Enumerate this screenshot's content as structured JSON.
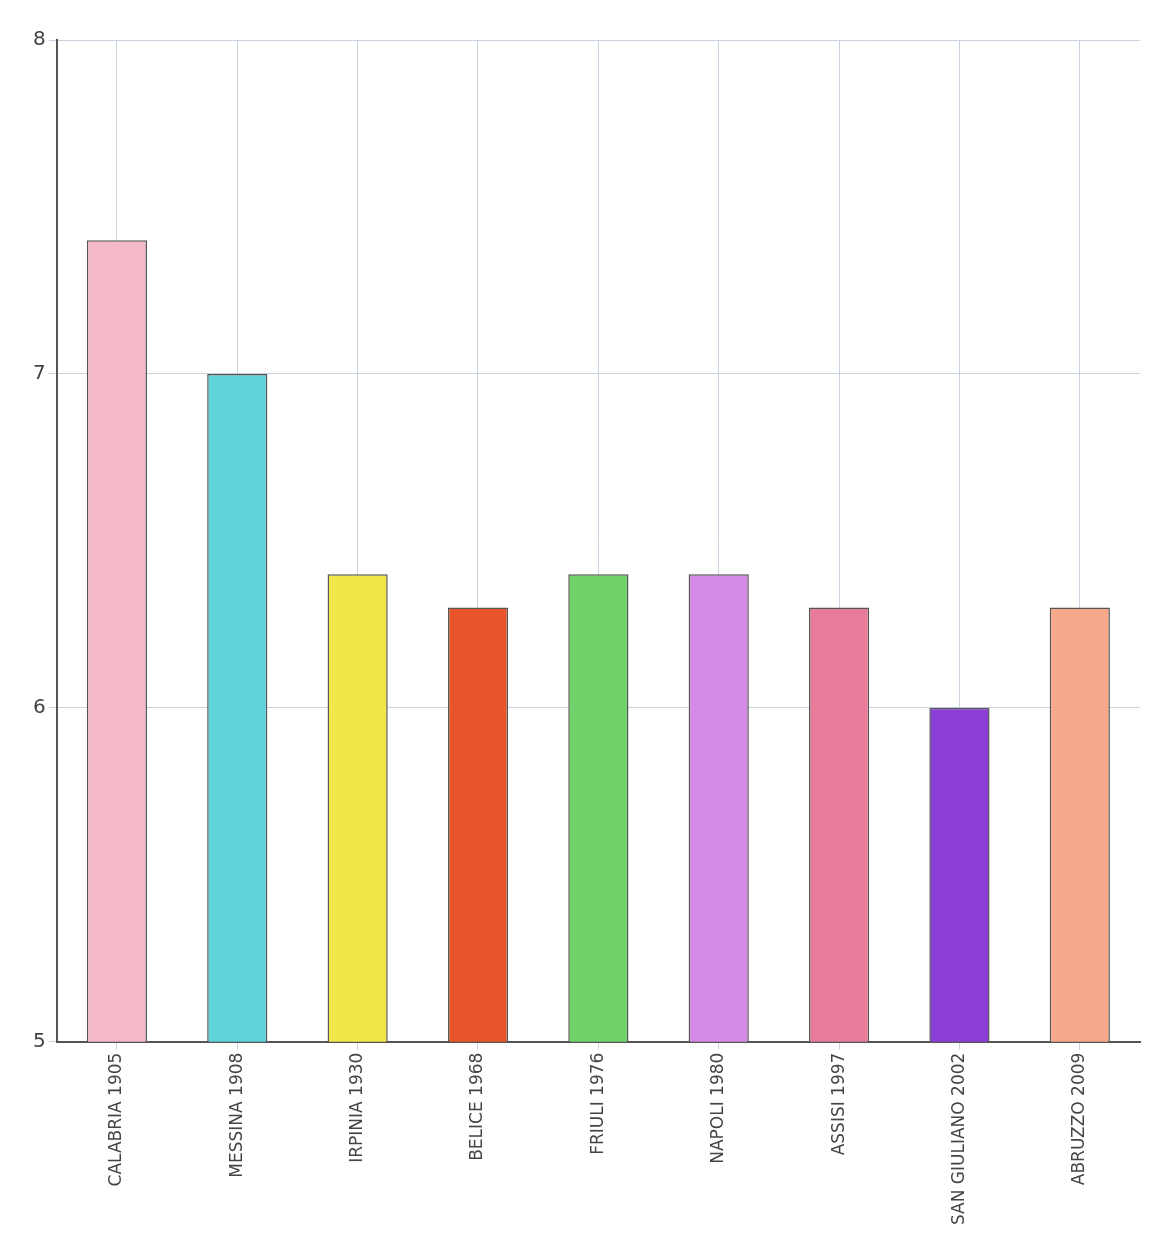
{
  "chart_data": {
    "type": "bar",
    "categories": [
      "CALABRIA 1905",
      "MESSINA 1908",
      "IRPINIA 1930",
      "BELICE 1968",
      "FRIULI 1976",
      "NAPOLI 1980",
      "ASSISI 1997",
      "SAN GIULIANO 2002",
      "ABRUZZO 2009"
    ],
    "values": [
      7.4,
      7.0,
      6.4,
      6.3,
      6.4,
      6.4,
      6.3,
      6.0,
      6.3
    ],
    "colors": [
      "#f4b8c8",
      "#5fd3d9",
      "#f3e64a",
      "#e8552a",
      "#6fd36a",
      "#d58ae8",
      "#e87a9a",
      "#8a3ed6",
      "#f5a88a"
    ],
    "ylim": [
      5,
      8
    ],
    "yticks": [
      5,
      6,
      7,
      8
    ],
    "grid": true
  }
}
